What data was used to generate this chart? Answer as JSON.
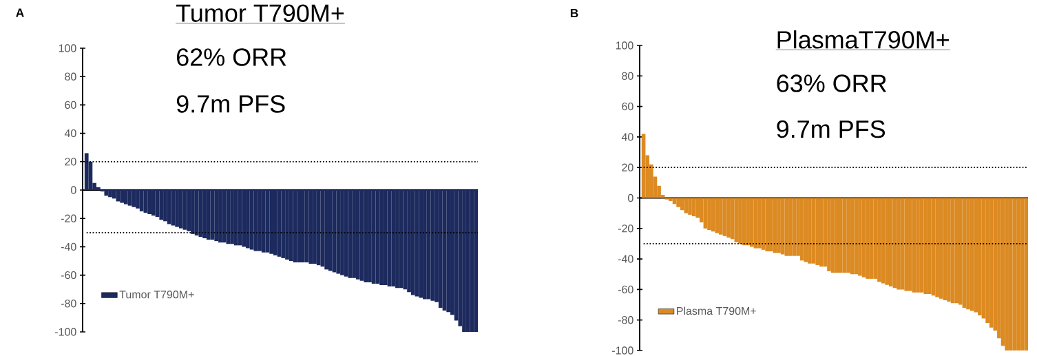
{
  "chart_data": [
    {
      "type": "bar",
      "title": "Tumor T790M+",
      "annotations": [
        "A",
        "62% ORR",
        "9.7m PFS"
      ],
      "categories": [
        null,
        null,
        null,
        null,
        null,
        null,
        null,
        null,
        null,
        null,
        null,
        null,
        null,
        null,
        null,
        null,
        null,
        null,
        null,
        null,
        null,
        null,
        null,
        null,
        null,
        null,
        null,
        null,
        null,
        null,
        null,
        null,
        null,
        null,
        null,
        null,
        null,
        null,
        null,
        null,
        null,
        null,
        null,
        null,
        null,
        null,
        null,
        null,
        null,
        null,
        null,
        null,
        null,
        null,
        null,
        null,
        null,
        null,
        null,
        null,
        null,
        null,
        null,
        null,
        null,
        null,
        null,
        null,
        null,
        null,
        null,
        null,
        null,
        null,
        null,
        null,
        null,
        null,
        null,
        null,
        null,
        null,
        null,
        null,
        null,
        null,
        null,
        null,
        null,
        null,
        null,
        null,
        null,
        null,
        null,
        null,
        null,
        null,
        null,
        null
      ],
      "series": [
        {
          "name": "Tumor T790M+",
          "color": "#1c2a5e",
          "values": [
            26,
            20,
            5,
            2,
            -1,
            -4,
            -5,
            -6,
            -8,
            -9,
            -10,
            -11,
            -12,
            -13,
            -15,
            -16,
            -17,
            -18,
            -19,
            -21,
            -22,
            -24,
            -25,
            -26,
            -27,
            -28,
            -29,
            -31,
            -32,
            -33,
            -34,
            -35,
            -35,
            -36,
            -37,
            -37,
            -38,
            -38,
            -39,
            -39,
            -40,
            -41,
            -42,
            -43,
            -43,
            -44,
            -44,
            -45,
            -46,
            -47,
            -48,
            -49,
            -50,
            -51,
            -51,
            -51,
            -51,
            -52,
            -52,
            -53,
            -54,
            -56,
            -57,
            -58,
            -59,
            -60,
            -61,
            -62,
            -62,
            -63,
            -64,
            -65,
            -65,
            -66,
            -66,
            -67,
            -67,
            -68,
            -68,
            -69,
            -69,
            -70,
            -72,
            -74,
            -75,
            -76,
            -77,
            -77,
            -78,
            -79,
            -83,
            -85,
            -86,
            -88,
            -92,
            -96,
            -100,
            -100,
            -100,
            -100
          ]
        }
      ],
      "ylim": [
        -100,
        100
      ],
      "yticks": [
        -100,
        -80,
        -60,
        -40,
        -20,
        0,
        20,
        40,
        60,
        80,
        100
      ],
      "ref_lines": [
        {
          "axis": "y",
          "value": 20,
          "line_style": "dotted"
        },
        {
          "axis": "y",
          "value": -30,
          "line_style": "dotted"
        }
      ],
      "legend": "bottom left"
    },
    {
      "type": "bar",
      "title": "PlasmaT790M+",
      "annotations": [
        "B",
        "63% ORR",
        "9.7m PFS"
      ],
      "categories": [
        null,
        null,
        null,
        null,
        null,
        null,
        null,
        null,
        null,
        null,
        null,
        null,
        null,
        null,
        null,
        null,
        null,
        null,
        null,
        null,
        null,
        null,
        null,
        null,
        null,
        null,
        null,
        null,
        null,
        null,
        null,
        null,
        null,
        null,
        null,
        null,
        null,
        null,
        null,
        null,
        null,
        null,
        null,
        null,
        null,
        null,
        null,
        null,
        null,
        null,
        null,
        null,
        null,
        null,
        null,
        null,
        null,
        null,
        null,
        null,
        null,
        null,
        null,
        null,
        null,
        null,
        null,
        null,
        null,
        null,
        null,
        null,
        null,
        null,
        null,
        null,
        null,
        null,
        null,
        null,
        null,
        null,
        null,
        null,
        null,
        null,
        null,
        null,
        null,
        null,
        null,
        null,
        null,
        null,
        null,
        null,
        null,
        null,
        null,
        null
      ],
      "series": [
        {
          "name": "Plasma T790M+",
          "color": "#dc8a22",
          "values": [
            42,
            28,
            22,
            14,
            8,
            2,
            -1,
            -2,
            -4,
            -6,
            -8,
            -10,
            -11,
            -12,
            -13,
            -16,
            -20,
            -21,
            -22,
            -23,
            -24,
            -25,
            -26,
            -27,
            -29,
            -30,
            -31,
            -31,
            -32,
            -33,
            -33,
            -34,
            -35,
            -35,
            -36,
            -36,
            -37,
            -38,
            -38,
            -38,
            -38,
            -41,
            -42,
            -43,
            -43,
            -44,
            -45,
            -45,
            -48,
            -49,
            -49,
            -49,
            -49,
            -49,
            -50,
            -50,
            -51,
            -52,
            -53,
            -53,
            -53,
            -55,
            -56,
            -57,
            -58,
            -59,
            -60,
            -60,
            -61,
            -61,
            -62,
            -62,
            -62,
            -63,
            -63,
            -64,
            -65,
            -66,
            -67,
            -68,
            -69,
            -69,
            -70,
            -72,
            -73,
            -74,
            -75,
            -77,
            -79,
            -82,
            -85,
            -87,
            -92,
            -97,
            -100,
            -100,
            -100,
            -100,
            -100,
            -100
          ]
        }
      ],
      "ylim": [
        -100,
        100
      ],
      "yticks": [
        -100,
        -80,
        -60,
        -40,
        -20,
        0,
        20,
        40,
        60,
        80,
        100
      ],
      "ref_lines": [
        {
          "axis": "y",
          "value": 20,
          "line_style": "dotted"
        },
        {
          "axis": "y",
          "value": -30,
          "line_style": "dotted"
        }
      ],
      "legend": "bottom left"
    }
  ]
}
